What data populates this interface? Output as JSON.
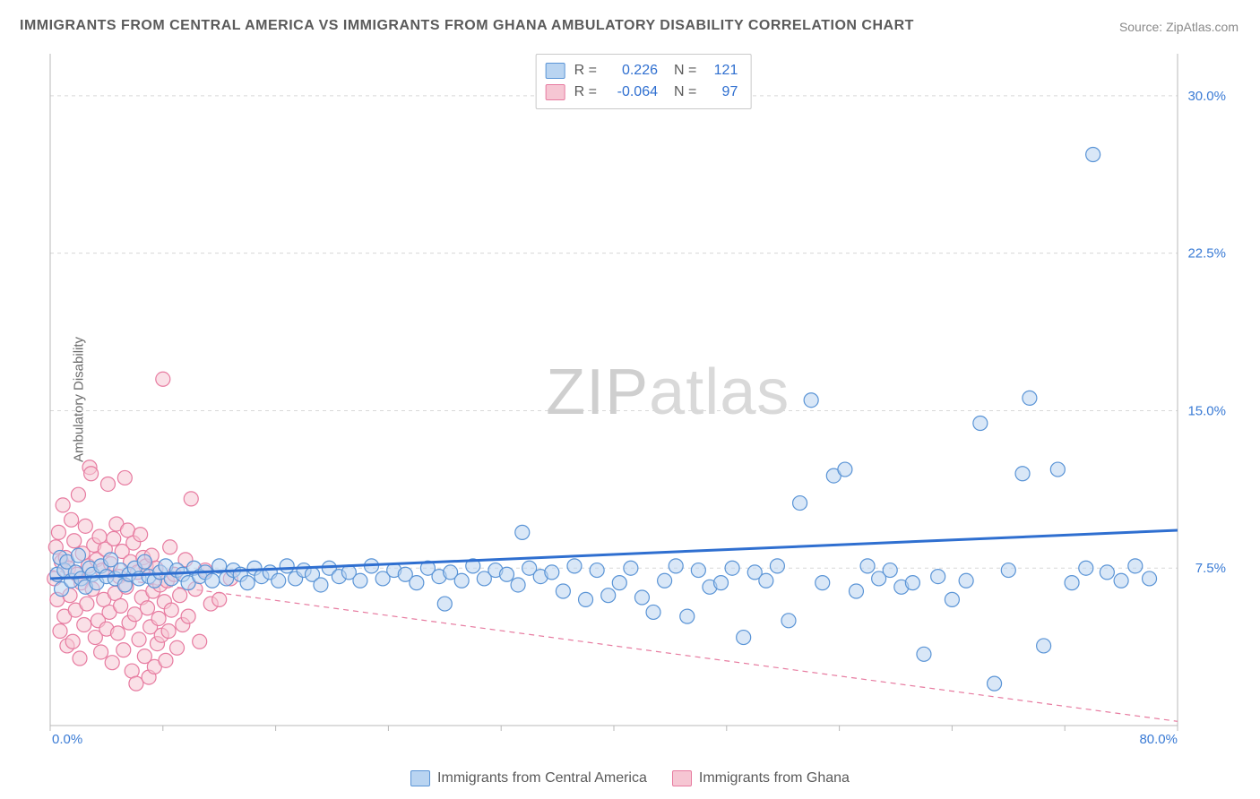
{
  "title": "IMMIGRANTS FROM CENTRAL AMERICA VS IMMIGRANTS FROM GHANA AMBULATORY DISABILITY CORRELATION CHART",
  "source_label": "Source: ",
  "source_value": "ZipAtlas.com",
  "ylabel": "Ambulatory Disability",
  "watermark_a": "ZIP",
  "watermark_b": "atlas",
  "chart": {
    "type": "scatter",
    "xlim": [
      0,
      80
    ],
    "ylim": [
      0,
      32
    ],
    "x_ticks": [
      0,
      80
    ],
    "x_tick_labels": [
      "0.0%",
      "80.0%"
    ],
    "y_ticks": [
      7.5,
      15.0,
      22.5,
      30.0
    ],
    "y_tick_labels": [
      "7.5%",
      "15.0%",
      "22.5%",
      "30.0%"
    ],
    "y_grid_dash": "4,4",
    "grid_color": "#d8d8d8",
    "axis_color": "#b8b8b8",
    "background_color": "#ffffff",
    "tick_label_color": "#3a7bd5",
    "marker_radius": 8,
    "marker_stroke_width": 1.2,
    "series": [
      {
        "name": "Immigrants from Central America",
        "fill": "#b9d4f1",
        "stroke": "#5a94d6",
        "fill_opacity": 0.55,
        "R": "0.226",
        "N": "121",
        "stat_color": "#2f6fd0",
        "trend": {
          "x1": 0,
          "y1": 7.0,
          "x2": 80,
          "y2": 9.3,
          "color": "#2f6fd0",
          "width": 3,
          "dash": null
        },
        "points": [
          [
            0.5,
            7.2
          ],
          [
            0.7,
            8.0
          ],
          [
            0.8,
            6.5
          ],
          [
            1.0,
            7.4
          ],
          [
            1.2,
            7.8
          ],
          [
            1.5,
            6.9
          ],
          [
            1.8,
            7.3
          ],
          [
            2.0,
            8.1
          ],
          [
            2.2,
            7.0
          ],
          [
            2.5,
            6.6
          ],
          [
            2.8,
            7.5
          ],
          [
            3.0,
            7.2
          ],
          [
            3.3,
            6.8
          ],
          [
            3.6,
            7.6
          ],
          [
            4.0,
            7.1
          ],
          [
            4.3,
            7.9
          ],
          [
            4.6,
            7.0
          ],
          [
            5.0,
            7.4
          ],
          [
            5.3,
            6.7
          ],
          [
            5.6,
            7.2
          ],
          [
            6.0,
            7.5
          ],
          [
            6.3,
            7.0
          ],
          [
            6.7,
            7.8
          ],
          [
            7.0,
            7.1
          ],
          [
            7.4,
            6.9
          ],
          [
            7.8,
            7.3
          ],
          [
            8.2,
            7.6
          ],
          [
            8.6,
            7.0
          ],
          [
            9.0,
            7.4
          ],
          [
            9.4,
            7.2
          ],
          [
            9.8,
            6.8
          ],
          [
            10.2,
            7.5
          ],
          [
            10.6,
            7.1
          ],
          [
            11.0,
            7.3
          ],
          [
            11.5,
            6.9
          ],
          [
            12.0,
            7.6
          ],
          [
            12.5,
            7.0
          ],
          [
            13.0,
            7.4
          ],
          [
            13.5,
            7.2
          ],
          [
            14.0,
            6.8
          ],
          [
            14.5,
            7.5
          ],
          [
            15.0,
            7.1
          ],
          [
            15.6,
            7.3
          ],
          [
            16.2,
            6.9
          ],
          [
            16.8,
            7.6
          ],
          [
            17.4,
            7.0
          ],
          [
            18.0,
            7.4
          ],
          [
            18.6,
            7.2
          ],
          [
            19.2,
            6.7
          ],
          [
            19.8,
            7.5
          ],
          [
            20.5,
            7.1
          ],
          [
            21.2,
            7.3
          ],
          [
            22.0,
            6.9
          ],
          [
            22.8,
            7.6
          ],
          [
            23.6,
            7.0
          ],
          [
            24.4,
            7.4
          ],
          [
            25.2,
            7.2
          ],
          [
            26.0,
            6.8
          ],
          [
            26.8,
            7.5
          ],
          [
            27.6,
            7.1
          ],
          [
            28.0,
            5.8
          ],
          [
            28.4,
            7.3
          ],
          [
            29.2,
            6.9
          ],
          [
            30.0,
            7.6
          ],
          [
            30.8,
            7.0
          ],
          [
            31.6,
            7.4
          ],
          [
            32.4,
            7.2
          ],
          [
            33.2,
            6.7
          ],
          [
            33.5,
            9.2
          ],
          [
            34.0,
            7.5
          ],
          [
            34.8,
            7.1
          ],
          [
            35.6,
            7.3
          ],
          [
            36.4,
            6.4
          ],
          [
            37.2,
            7.6
          ],
          [
            38.0,
            6.0
          ],
          [
            38.8,
            7.4
          ],
          [
            39.6,
            6.2
          ],
          [
            40.4,
            6.8
          ],
          [
            41.2,
            7.5
          ],
          [
            42.0,
            6.1
          ],
          [
            42.8,
            5.4
          ],
          [
            43.6,
            6.9
          ],
          [
            44.4,
            7.6
          ],
          [
            45.2,
            5.2
          ],
          [
            46.0,
            7.4
          ],
          [
            46.8,
            6.6
          ],
          [
            47.6,
            6.8
          ],
          [
            48.4,
            7.5
          ],
          [
            49.2,
            4.2
          ],
          [
            50.0,
            7.3
          ],
          [
            50.8,
            6.9
          ],
          [
            51.6,
            7.6
          ],
          [
            52.4,
            5.0
          ],
          [
            53.2,
            10.6
          ],
          [
            54.0,
            15.5
          ],
          [
            54.8,
            6.8
          ],
          [
            55.6,
            11.9
          ],
          [
            56.4,
            12.2
          ],
          [
            57.2,
            6.4
          ],
          [
            58.0,
            7.6
          ],
          [
            58.8,
            7.0
          ],
          [
            59.6,
            7.4
          ],
          [
            60.4,
            6.6
          ],
          [
            61.2,
            6.8
          ],
          [
            62.0,
            3.4
          ],
          [
            63.0,
            7.1
          ],
          [
            64.0,
            6.0
          ],
          [
            65.0,
            6.9
          ],
          [
            66.0,
            14.4
          ],
          [
            67.0,
            2.0
          ],
          [
            68.0,
            7.4
          ],
          [
            69.0,
            12.0
          ],
          [
            69.5,
            15.6
          ],
          [
            70.5,
            3.8
          ],
          [
            71.5,
            12.2
          ],
          [
            72.5,
            6.8
          ],
          [
            73.5,
            7.5
          ],
          [
            74.0,
            27.2
          ],
          [
            75.0,
            7.3
          ],
          [
            76.0,
            6.9
          ],
          [
            77.0,
            7.6
          ],
          [
            78.0,
            7.0
          ]
        ]
      },
      {
        "name": "Immigrants from Ghana",
        "fill": "#f6c6d3",
        "stroke": "#e77ba0",
        "fill_opacity": 0.55,
        "R": "-0.064",
        "N": "97",
        "stat_color": "#2f6fd0",
        "trend": {
          "x1": 0,
          "y1": 7.4,
          "x2": 80,
          "y2": 0.2,
          "color": "#e77ba0",
          "width": 1.2,
          "dash": "6,5"
        },
        "points": [
          [
            0.3,
            7.0
          ],
          [
            0.4,
            8.5
          ],
          [
            0.5,
            6.0
          ],
          [
            0.6,
            9.2
          ],
          [
            0.7,
            4.5
          ],
          [
            0.8,
            7.8
          ],
          [
            0.9,
            10.5
          ],
          [
            1.0,
            5.2
          ],
          [
            1.1,
            8.0
          ],
          [
            1.2,
            3.8
          ],
          [
            1.3,
            7.5
          ],
          [
            1.4,
            6.2
          ],
          [
            1.5,
            9.8
          ],
          [
            1.6,
            4.0
          ],
          [
            1.7,
            8.8
          ],
          [
            1.8,
            5.5
          ],
          [
            1.9,
            7.2
          ],
          [
            2.0,
            11.0
          ],
          [
            2.1,
            3.2
          ],
          [
            2.2,
            6.8
          ],
          [
            2.3,
            8.2
          ],
          [
            2.4,
            4.8
          ],
          [
            2.5,
            9.5
          ],
          [
            2.6,
            5.8
          ],
          [
            2.7,
            7.6
          ],
          [
            2.8,
            12.3
          ],
          [
            2.9,
            12.0
          ],
          [
            3.0,
            6.5
          ],
          [
            3.1,
            8.6
          ],
          [
            3.2,
            4.2
          ],
          [
            3.3,
            7.9
          ],
          [
            3.4,
            5.0
          ],
          [
            3.5,
            9.0
          ],
          [
            3.6,
            3.5
          ],
          [
            3.7,
            7.4
          ],
          [
            3.8,
            6.0
          ],
          [
            3.9,
            8.4
          ],
          [
            4.0,
            4.6
          ],
          [
            4.1,
            11.5
          ],
          [
            4.2,
            5.4
          ],
          [
            4.3,
            7.7
          ],
          [
            4.4,
            3.0
          ],
          [
            4.5,
            8.9
          ],
          [
            4.6,
            6.3
          ],
          [
            4.7,
            9.6
          ],
          [
            4.8,
            4.4
          ],
          [
            4.9,
            7.1
          ],
          [
            5.0,
            5.7
          ],
          [
            5.1,
            8.3
          ],
          [
            5.2,
            3.6
          ],
          [
            5.3,
            11.8
          ],
          [
            5.4,
            6.6
          ],
          [
            5.5,
            9.3
          ],
          [
            5.6,
            4.9
          ],
          [
            5.7,
            7.8
          ],
          [
            5.8,
            2.6
          ],
          [
            5.9,
            8.7
          ],
          [
            6.0,
            5.3
          ],
          [
            6.1,
            2.0
          ],
          [
            6.2,
            7.3
          ],
          [
            6.3,
            4.1
          ],
          [
            6.4,
            9.1
          ],
          [
            6.5,
            6.1
          ],
          [
            6.6,
            8.0
          ],
          [
            6.7,
            3.3
          ],
          [
            6.8,
            7.6
          ],
          [
            6.9,
            5.6
          ],
          [
            7.0,
            2.3
          ],
          [
            7.1,
            4.7
          ],
          [
            7.2,
            8.1
          ],
          [
            7.3,
            6.4
          ],
          [
            7.4,
            2.8
          ],
          [
            7.5,
            7.5
          ],
          [
            7.6,
            3.9
          ],
          [
            7.7,
            5.1
          ],
          [
            7.8,
            6.7
          ],
          [
            7.9,
            4.3
          ],
          [
            8.0,
            16.5
          ],
          [
            8.1,
            5.9
          ],
          [
            8.2,
            3.1
          ],
          [
            8.3,
            6.9
          ],
          [
            8.4,
            4.5
          ],
          [
            8.5,
            8.5
          ],
          [
            8.6,
            5.5
          ],
          [
            8.8,
            7.2
          ],
          [
            9.0,
            3.7
          ],
          [
            9.2,
            6.2
          ],
          [
            9.4,
            4.8
          ],
          [
            9.6,
            7.9
          ],
          [
            9.8,
            5.2
          ],
          [
            10.0,
            10.8
          ],
          [
            10.3,
            6.5
          ],
          [
            10.6,
            4.0
          ],
          [
            11.0,
            7.4
          ],
          [
            11.4,
            5.8
          ],
          [
            12.0,
            6.0
          ],
          [
            12.8,
            7.0
          ]
        ]
      }
    ],
    "xlegend": [
      {
        "label": "Immigrants from Central America",
        "fill": "#b9d4f1",
        "stroke": "#5a94d6"
      },
      {
        "label": "Immigrants from Ghana",
        "fill": "#f6c6d3",
        "stroke": "#e77ba0"
      }
    ]
  },
  "toplegend": {
    "r_label": "R =",
    "n_label": "N ="
  }
}
